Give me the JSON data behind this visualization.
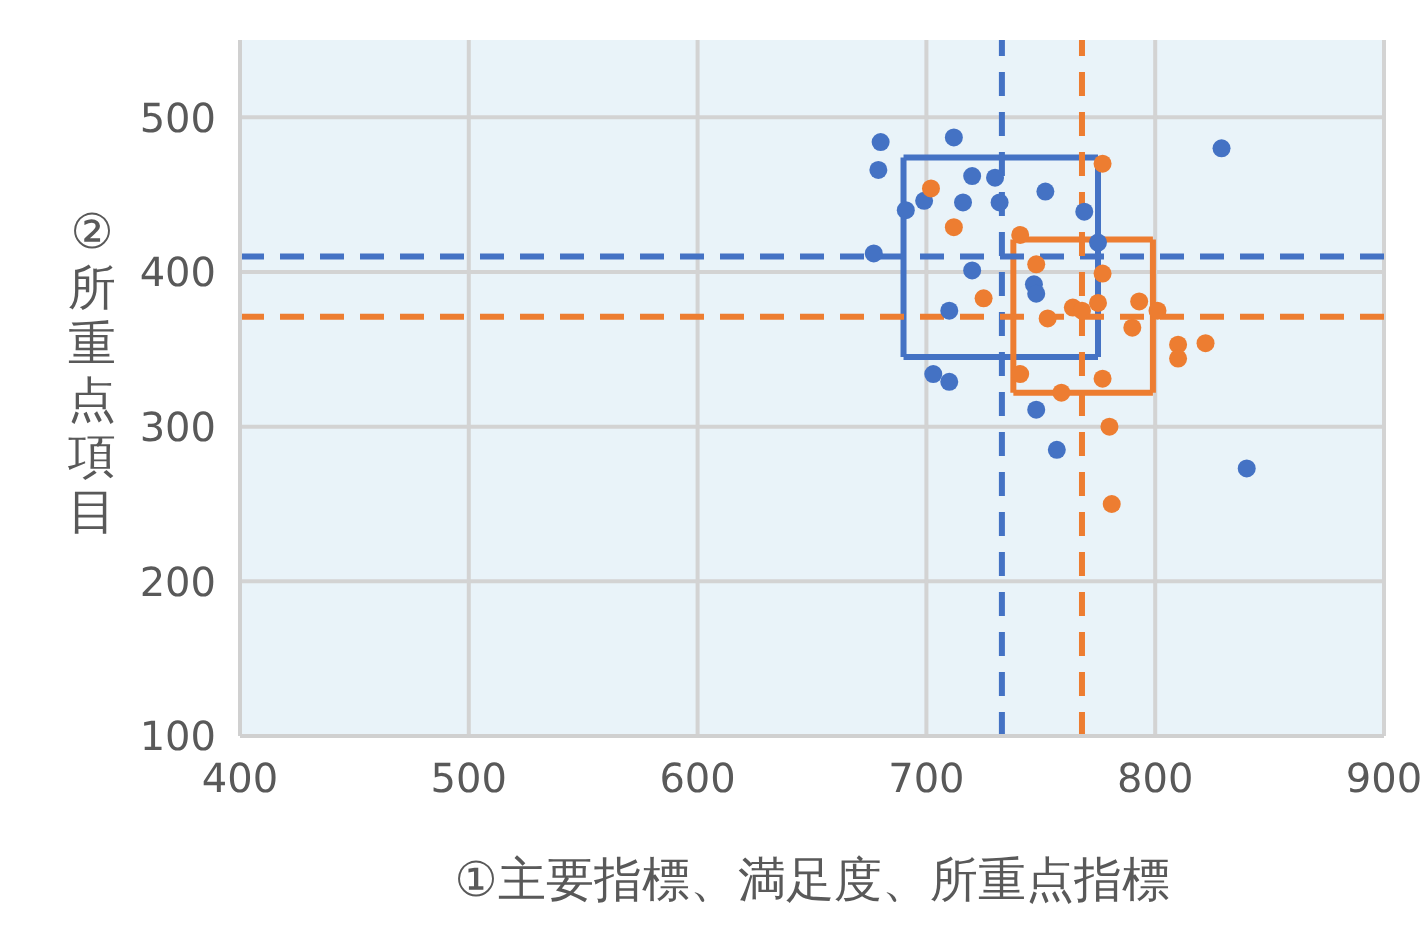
{
  "chart_data": {
    "type": "scatter",
    "xlabel": "①主要指標、満足度、所重点指標",
    "ylabel": "②所重点項目",
    "xlim": [
      400,
      900
    ],
    "xticks": [
      400,
      500,
      600,
      700,
      800,
      900
    ],
    "ylim": [
      100,
      550
    ],
    "yticks": [
      100,
      200,
      300,
      400,
      500
    ],
    "grid": true,
    "marker": "circle",
    "series": [
      {
        "type": "scatter",
        "color": "#4472c4",
        "x": [
          680,
          679,
          712,
          829,
          720,
          730,
          752,
          699,
          691,
          716,
          732,
          769,
          677,
          775,
          720,
          747,
          748,
          710,
          703,
          710,
          748,
          757,
          840
        ],
        "values": [
          484,
          466,
          487,
          480,
          462,
          461,
          452,
          446,
          440,
          445,
          445,
          439,
          412,
          419,
          401,
          392,
          386,
          375,
          334,
          329,
          311,
          285,
          273
        ]
      },
      {
        "type": "scatter",
        "color": "#ed7d31",
        "x": [
          777,
          702,
          712,
          741,
          748,
          777,
          725,
          775,
          764,
          768,
          753,
          793,
          801,
          790,
          810,
          810,
          822,
          741,
          777,
          759,
          780,
          781
        ],
        "values": [
          470,
          454,
          429,
          424,
          405,
          399,
          383,
          380,
          377,
          375,
          370,
          381,
          375,
          364,
          353,
          344,
          354,
          334,
          331,
          322,
          300,
          250
        ]
      },
      {
        "type": "line",
        "color": "#4472c4",
        "marker": "none",
        "x": [
          690,
          775
        ],
        "values": [
          474,
          474
        ]
      },
      {
        "type": "line",
        "color": "#4472c4",
        "marker": "none",
        "x": [
          690,
          775
        ],
        "values": [
          345,
          345
        ]
      },
      {
        "type": "line",
        "color": "#4472c4",
        "marker": "none",
        "x": [
          690,
          690
        ],
        "values": [
          474,
          345
        ]
      },
      {
        "type": "line",
        "color": "#4472c4",
        "marker": "none",
        "x": [
          775,
          775
        ],
        "values": [
          474,
          345
        ]
      },
      {
        "type": "line",
        "color": "#ed7d31",
        "marker": "none",
        "x": [
          738,
          799
        ],
        "values": [
          421,
          421
        ]
      },
      {
        "type": "line",
        "color": "#ed7d31",
        "marker": "none",
        "x": [
          738,
          799
        ],
        "values": [
          322,
          322
        ]
      },
      {
        "type": "line",
        "color": "#ed7d31",
        "marker": "none",
        "x": [
          738,
          738
        ],
        "values": [
          421,
          322
        ]
      },
      {
        "type": "line",
        "color": "#ed7d31",
        "marker": "none",
        "x": [
          799,
          799
        ],
        "values": [
          421,
          322
        ]
      }
    ],
    "ref_lines": [
      {
        "axis": "x",
        "value": 733,
        "color": "#4472c4",
        "line_style": "dashed"
      },
      {
        "axis": "y",
        "value": 410,
        "color": "#4472c4",
        "line_style": "dashed"
      },
      {
        "axis": "x",
        "value": 768,
        "color": "#ed7d31",
        "line_style": "dashed"
      },
      {
        "axis": "y",
        "value": 371,
        "color": "#ed7d31",
        "line_style": "dashed"
      }
    ]
  }
}
